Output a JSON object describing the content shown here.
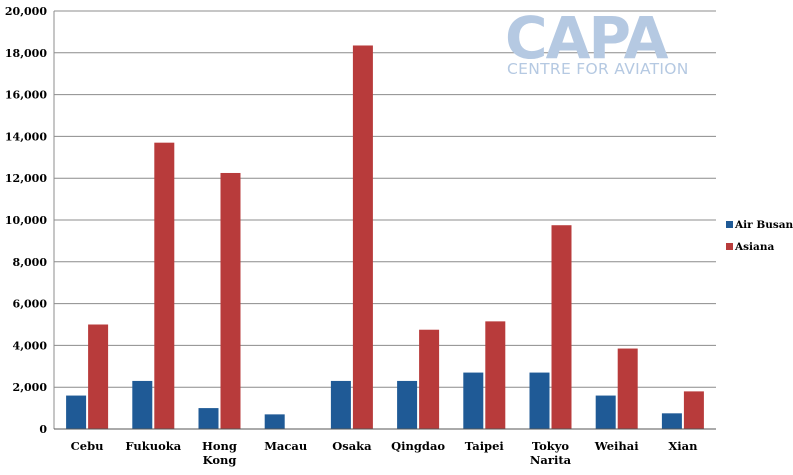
{
  "logo": {
    "main": "CAPA",
    "sub": "CENTRE FOR AVIATION"
  },
  "chart_data": {
    "type": "bar",
    "categories": [
      [
        "Cebu"
      ],
      [
        "Fukuoka"
      ],
      [
        "Hong",
        "Kong"
      ],
      [
        "Macau"
      ],
      [
        "Osaka"
      ],
      [
        "Qingdao"
      ],
      [
        "Taipei"
      ],
      [
        "Tokyo",
        "Narita"
      ],
      [
        "Weihai"
      ],
      [
        "Xian"
      ]
    ],
    "series": [
      {
        "name": "Air Busan",
        "color": "#1f5a96",
        "values": [
          1600,
          2300,
          1000,
          700,
          2300,
          2300,
          2700,
          2700,
          1600,
          750
        ]
      },
      {
        "name": "Asiana",
        "color": "#b83b3b",
        "values": [
          5000,
          13700,
          12250,
          0,
          18350,
          4750,
          5150,
          9750,
          3850,
          1800
        ]
      }
    ],
    "ylim": [
      0,
      20000
    ],
    "yticks": [
      "0",
      "2,000",
      "4,000",
      "6,000",
      "8,000",
      "10,000",
      "12,000",
      "14,000",
      "16,000",
      "18,000",
      "20,000"
    ],
    "grid": true,
    "legend": "right"
  }
}
